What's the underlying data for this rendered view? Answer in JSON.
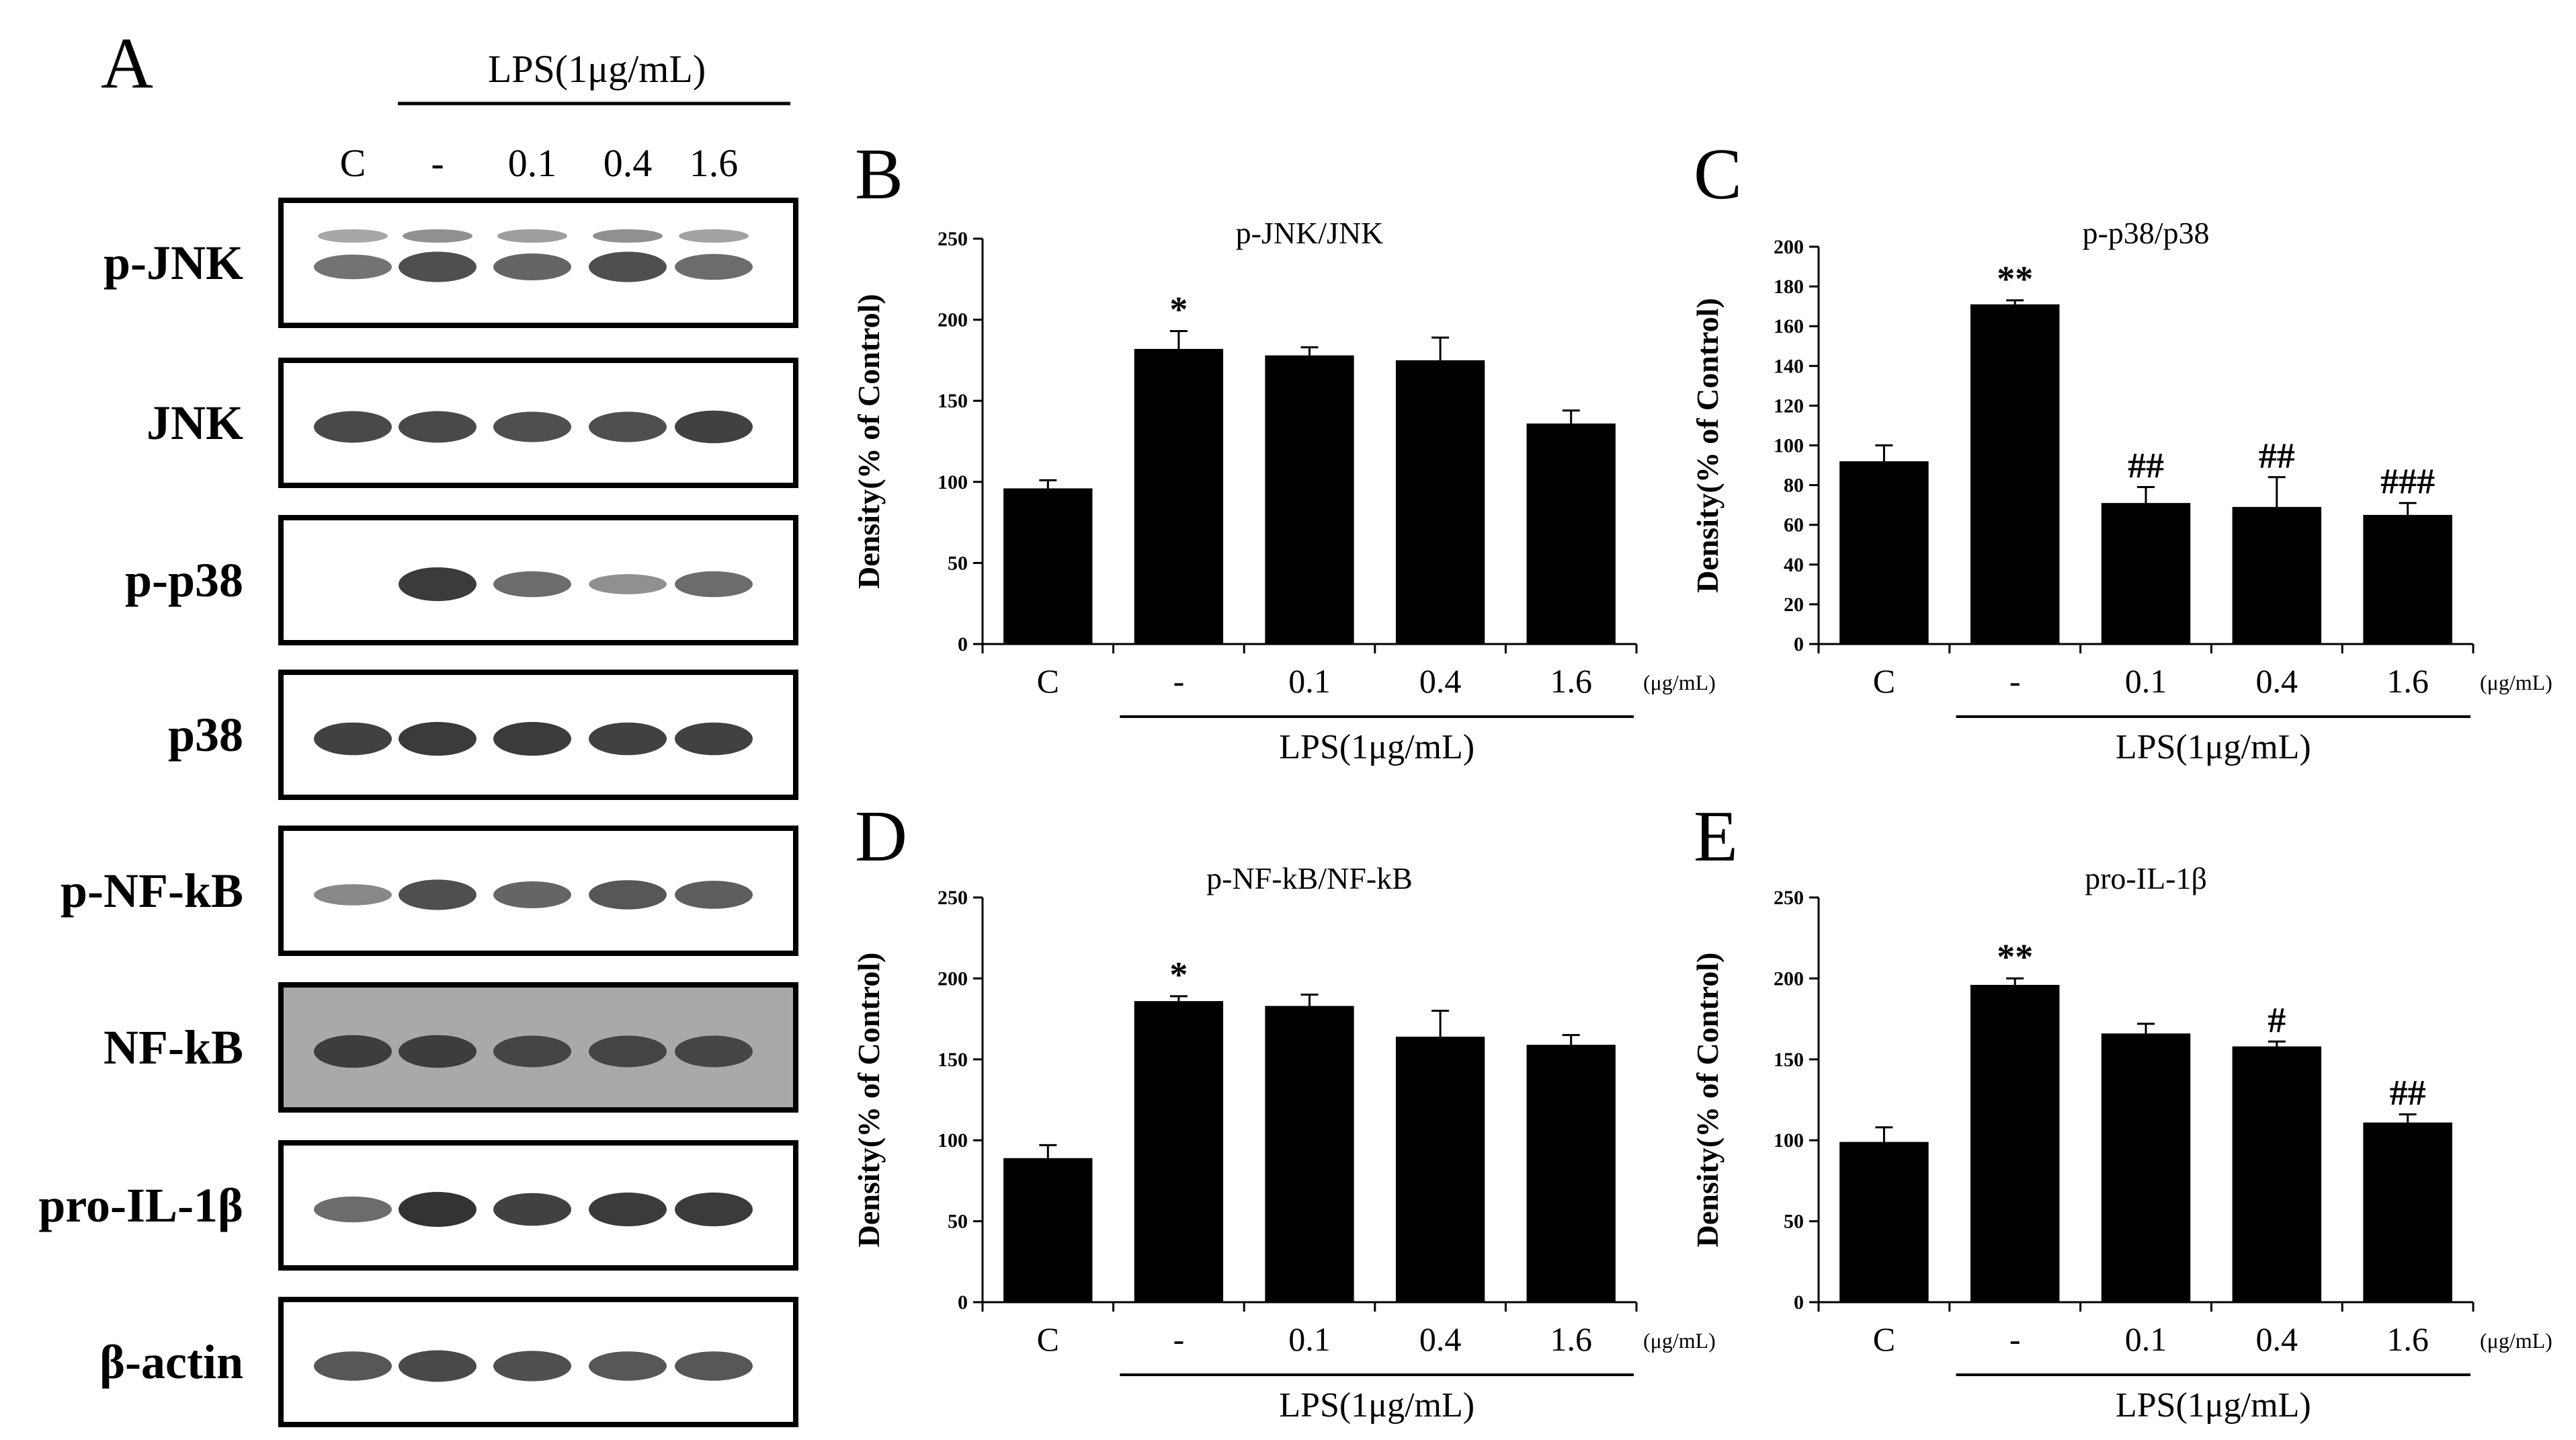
{
  "figure": {
    "blot": {
      "panel_letter": "A",
      "treatment_label": "LPS(1μg/mL)",
      "lanes": [
        "C",
        "-",
        "0.1",
        "0.4",
        "1.6"
      ],
      "rows": [
        {
          "label": "p-JNK",
          "intensities": [
            0.55,
            0.8,
            0.65,
            0.8,
            0.6
          ],
          "bg": "#ffffff",
          "double": true
        },
        {
          "label": "JNK",
          "intensities": [
            0.85,
            0.85,
            0.8,
            0.8,
            0.9
          ],
          "bg": "#ffffff",
          "double": false
        },
        {
          "label": "p-p38",
          "intensities": [
            0.0,
            0.95,
            0.6,
            0.35,
            0.6
          ],
          "bg": "#ffffff",
          "double": false
        },
        {
          "label": "p38",
          "intensities": [
            0.9,
            0.95,
            0.95,
            0.9,
            0.9
          ],
          "bg": "#ffffff",
          "double": false
        },
        {
          "label": "p-NF-kB",
          "intensities": [
            0.4,
            0.8,
            0.65,
            0.75,
            0.7
          ],
          "bg": "#ffffff",
          "double": false
        },
        {
          "label": "NF-kB",
          "intensities": [
            0.9,
            0.9,
            0.85,
            0.85,
            0.85
          ],
          "bg": "#a9a9a9",
          "double": false
        },
        {
          "label": "pro-IL-1β",
          "intensities": [
            0.6,
            1.0,
            0.9,
            0.95,
            0.95
          ],
          "bg": "#ffffff",
          "double": false
        },
        {
          "label": "β-actin",
          "intensities": [
            0.75,
            0.85,
            0.8,
            0.75,
            0.75
          ],
          "bg": "#ffffff",
          "double": false
        }
      ]
    }
  },
  "chart_data": [
    {
      "panel": "B",
      "type": "bar",
      "title": "p-JNK/JNK",
      "ylabel": "Density(% of Control)",
      "ylim": [
        0,
        250
      ],
      "yticks": [
        0,
        50,
        100,
        150,
        200,
        250
      ],
      "categories": [
        "C",
        "-",
        "0.1",
        "0.4",
        "1.6"
      ],
      "unit": "(μg/mL)",
      "group_label": "LPS(1μg/mL)",
      "values": [
        96,
        182,
        178,
        175,
        136
      ],
      "errors": [
        5,
        11,
        5,
        14,
        8
      ],
      "annotations": [
        "",
        "*",
        "",
        "",
        ""
      ]
    },
    {
      "panel": "C",
      "type": "bar",
      "title": "p-p38/p38",
      "ylabel": "Density(% of Control)",
      "ylim": [
        0,
        200
      ],
      "yticks": [
        0,
        20,
        40,
        60,
        80,
        100,
        120,
        140,
        160,
        180,
        200
      ],
      "categories": [
        "C",
        "-",
        "0.1",
        "0.4",
        "1.6"
      ],
      "unit": "(μg/mL)",
      "group_label": "LPS(1μg/mL)",
      "values": [
        92,
        171,
        71,
        69,
        65
      ],
      "errors": [
        8,
        2,
        8,
        15,
        6
      ],
      "annotations": [
        "",
        "**",
        "##",
        "##",
        "###"
      ]
    },
    {
      "panel": "D",
      "type": "bar",
      "title": "p-NF-kB/NF-kB",
      "ylabel": "Density(% of Control)",
      "ylim": [
        0,
        250
      ],
      "yticks": [
        0,
        50,
        100,
        150,
        200,
        250
      ],
      "categories": [
        "C",
        "-",
        "0.1",
        "0.4",
        "1.6"
      ],
      "unit": "(μg/mL)",
      "group_label": "LPS(1μg/mL)",
      "values": [
        89,
        186,
        183,
        164,
        159
      ],
      "errors": [
        8,
        3,
        7,
        16,
        6
      ],
      "annotations": [
        "",
        "*",
        "",
        "",
        ""
      ]
    },
    {
      "panel": "E",
      "type": "bar",
      "title": "pro-IL-1β",
      "ylabel": "Density(% of Control)",
      "ylim": [
        0,
        250
      ],
      "yticks": [
        0,
        50,
        100,
        150,
        200,
        250
      ],
      "categories": [
        "C",
        "-",
        "0.1",
        "0.4",
        "1.6"
      ],
      "unit": "(μg/mL)",
      "group_label": "LPS(1μg/mL)",
      "values": [
        99,
        196,
        166,
        158,
        111
      ],
      "errors": [
        9,
        4,
        6,
        3,
        5
      ],
      "annotations": [
        "",
        "**",
        "",
        "#",
        "##"
      ]
    }
  ]
}
